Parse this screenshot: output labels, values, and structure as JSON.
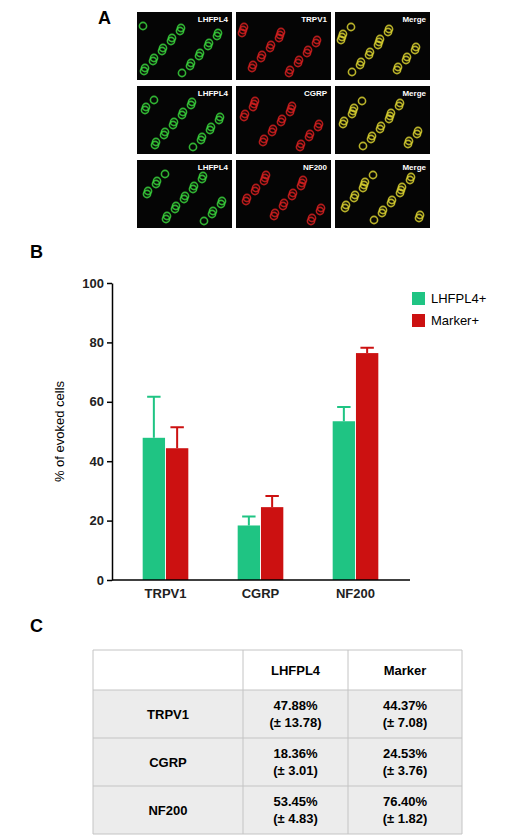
{
  "panel_labels": [
    "A",
    "B",
    "C"
  ],
  "panel_a": {
    "rows": [
      [
        "LHFPL4",
        "TRPV1",
        "Merge"
      ],
      [
        "LHFPL4",
        "CGRP",
        "Merge"
      ],
      [
        "LHFPL4",
        "NF200",
        "Merge"
      ]
    ]
  },
  "chart_data": {
    "type": "bar",
    "categories": [
      "TRPV1",
      "CGRP",
      "NF200"
    ],
    "series": [
      {
        "name": "LHFPL4+",
        "color": "#1fc483",
        "values": [
          47.88,
          18.36,
          53.45
        ],
        "errors": [
          13.78,
          3.01,
          4.83
        ]
      },
      {
        "name": "Marker+",
        "color": "#cc1111",
        "values": [
          44.37,
          24.53,
          76.4
        ],
        "errors": [
          7.08,
          3.76,
          1.82
        ]
      }
    ],
    "y_label": "% of evoked cells",
    "ylim": [
      0,
      100
    ],
    "yticks": [
      0,
      20,
      40,
      60,
      80,
      100
    ],
    "grid": false,
    "legend": "right"
  },
  "table": {
    "header": [
      "LHFPL4",
      "Marker"
    ],
    "rows": [
      {
        "label": "TRPV1",
        "cells": [
          [
            "47.88%",
            "(± 13.78)"
          ],
          [
            "44.37%",
            "(± 7.08)"
          ]
        ]
      },
      {
        "label": "CGRP",
        "cells": [
          [
            "18.36%",
            "(± 3.01)"
          ],
          [
            "24.53%",
            "(± 3.76)"
          ]
        ]
      },
      {
        "label": "NF200",
        "cells": [
          [
            "53.45%",
            "(± 4.83)"
          ],
          [
            "76.40%",
            "(± 1.82)"
          ]
        ]
      }
    ]
  }
}
